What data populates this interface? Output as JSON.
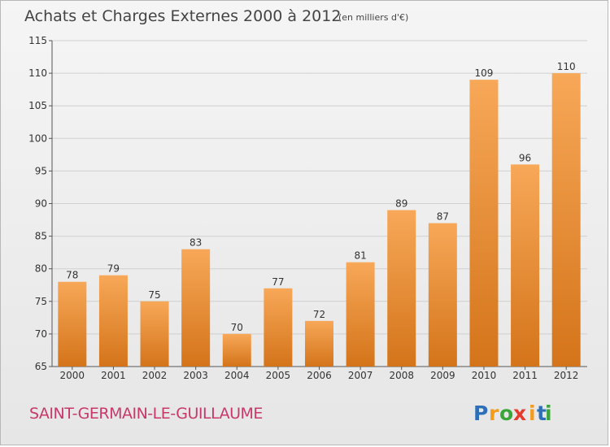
{
  "title": "Achats et Charges Externes 2000 à 2012",
  "unit_note": "(en milliers d'€)",
  "town": "SAINT-GERMAIN-LE-GUILLAUME",
  "brand": [
    "P",
    "r",
    "o",
    "x",
    "i",
    "t",
    "i"
  ],
  "colors": {
    "bar_top": "#f7a858",
    "bar_bottom": "#d4741a",
    "grid": "#d0d0d0",
    "town": "#c8386a",
    "title": "#444444",
    "brand": [
      "#2e6fb7",
      "#f29b1d",
      "#3aa63a",
      "#e33b2e",
      "#f29b1d",
      "#2e6fb7",
      "#3aa63a"
    ]
  },
  "chart_data": {
    "type": "bar",
    "categories": [
      "2000",
      "2001",
      "2002",
      "2003",
      "2004",
      "2005",
      "2006",
      "2007",
      "2008",
      "2009",
      "2010",
      "2011",
      "2012"
    ],
    "values": [
      78,
      79,
      75,
      83,
      70,
      77,
      72,
      81,
      89,
      87,
      109,
      96,
      110
    ],
    "ylim": [
      65,
      115
    ],
    "yticks": [
      65,
      70,
      75,
      80,
      85,
      90,
      95,
      100,
      105,
      110,
      115
    ],
    "grid": true,
    "legend": "none"
  }
}
